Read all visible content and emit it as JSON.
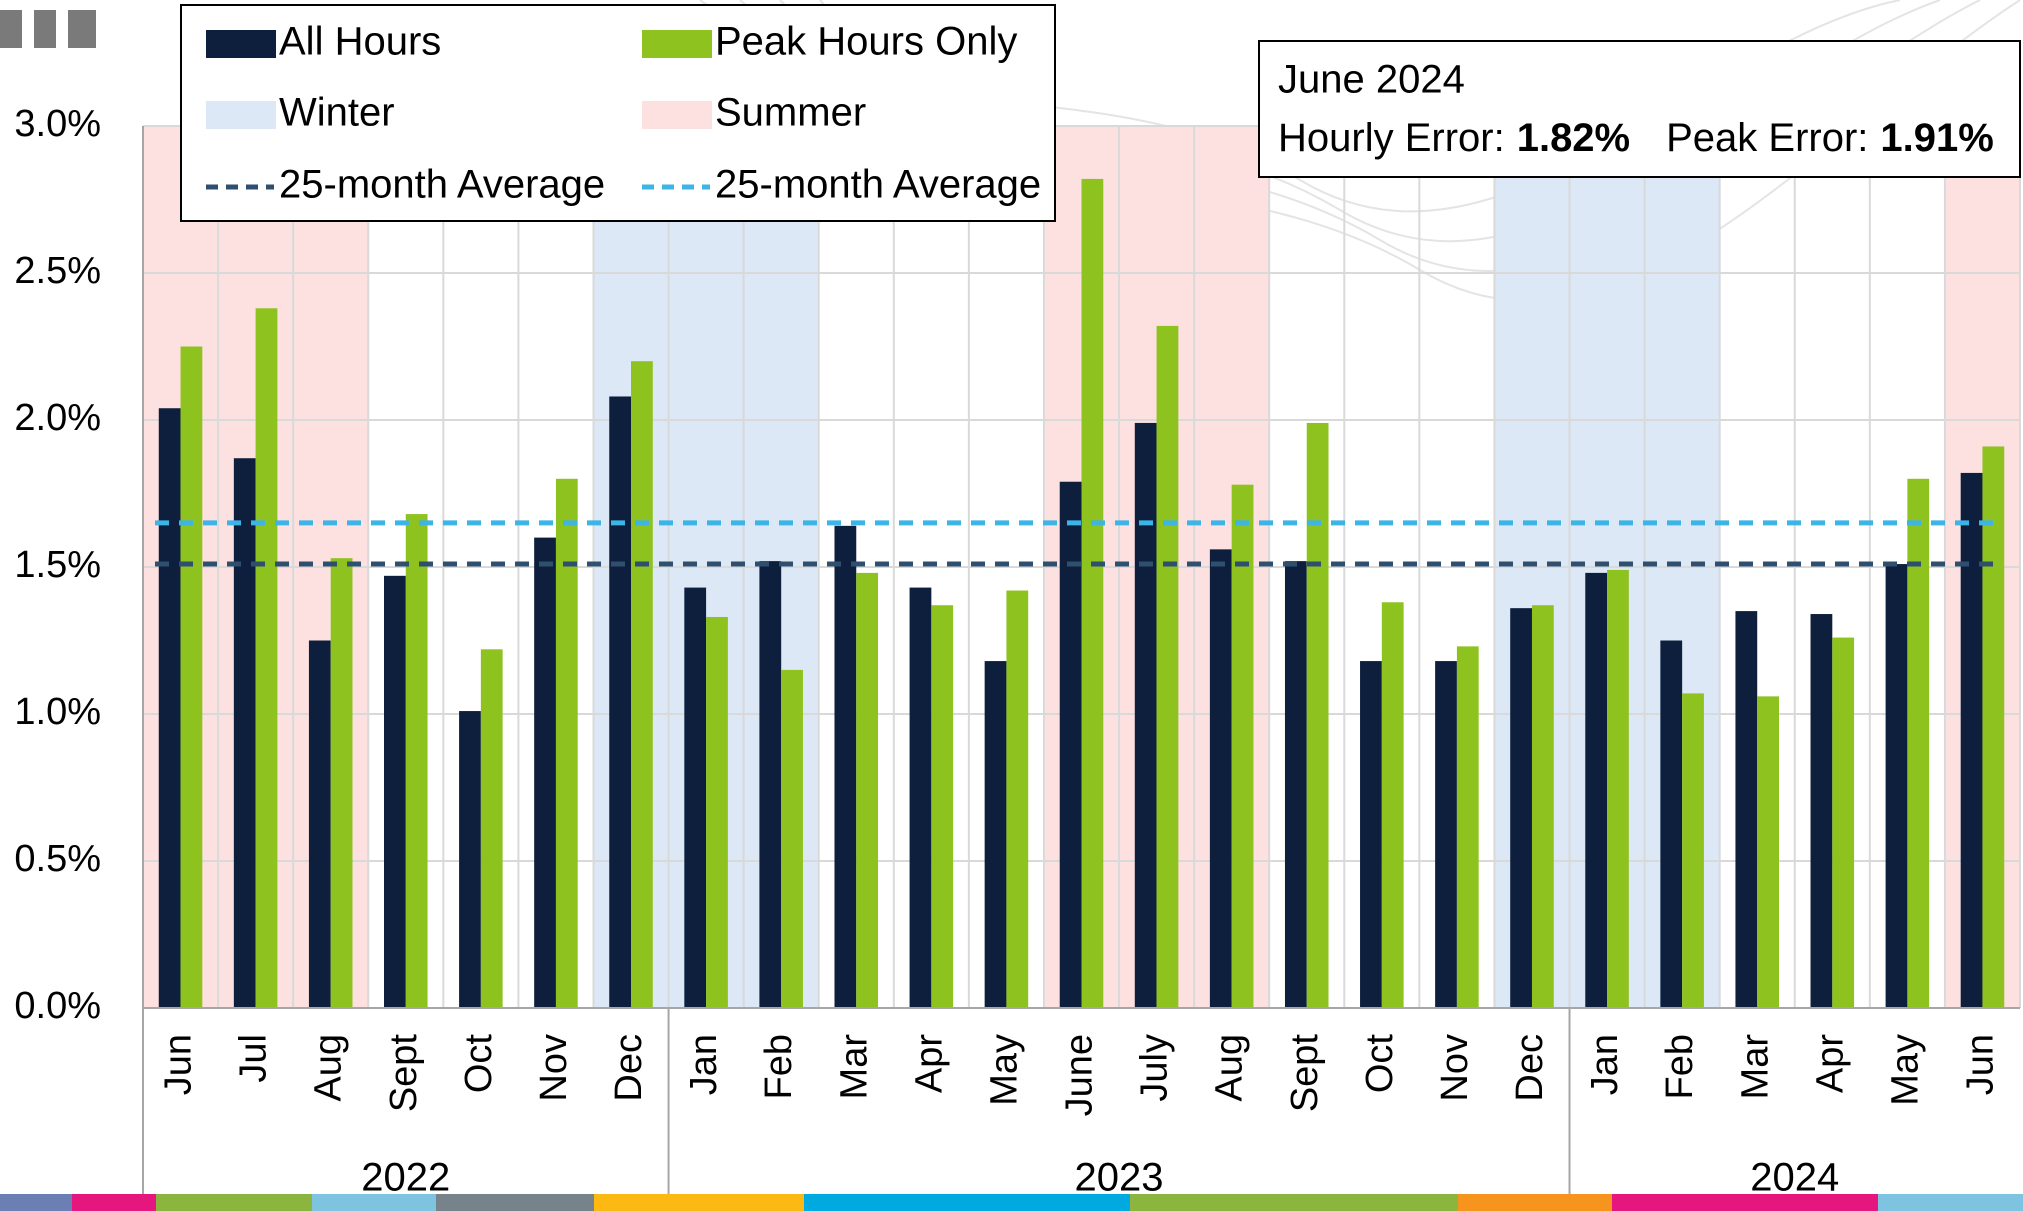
{
  "chart_data": {
    "type": "bar",
    "categories": [
      "Jun",
      "Jul",
      "Aug",
      "Sept",
      "Oct",
      "Nov",
      "Dec",
      "Jan",
      "Feb",
      "Mar",
      "Apr",
      "May",
      "June",
      "July",
      "Aug",
      "Sept",
      "Oct",
      "Nov",
      "Dec",
      "Jan",
      "Feb",
      "Mar",
      "Apr",
      "May",
      "Jun"
    ],
    "x_groups": [
      {
        "label": "2022",
        "count": 7
      },
      {
        "label": "2023",
        "count": 12
      },
      {
        "label": "2024",
        "count": 6
      }
    ],
    "series": [
      {
        "name": "All Hours",
        "color": "#0d1f3c",
        "values": [
          2.04,
          1.87,
          1.25,
          1.47,
          1.01,
          1.6,
          2.08,
          1.43,
          1.52,
          1.64,
          1.43,
          1.18,
          1.79,
          1.99,
          1.56,
          1.52,
          1.18,
          1.18,
          1.36,
          1.48,
          1.25,
          1.35,
          1.34,
          1.51,
          1.82
        ]
      },
      {
        "name": "Peak Hours Only",
        "color": "#8dc21f",
        "values": [
          2.25,
          2.38,
          1.53,
          1.68,
          1.22,
          1.8,
          2.2,
          1.33,
          1.15,
          1.48,
          1.37,
          1.42,
          2.82,
          2.32,
          1.78,
          1.99,
          1.38,
          1.23,
          1.37,
          1.49,
          1.07,
          1.06,
          1.26,
          1.8,
          1.91
        ]
      }
    ],
    "seasons": [
      {
        "name": "Winter",
        "color": "#dce8f5"
      },
      {
        "name": "Summer",
        "color": "#fde0e0"
      }
    ],
    "category_season": [
      1,
      1,
      1,
      null,
      null,
      null,
      0,
      0,
      0,
      null,
      null,
      null,
      1,
      1,
      1,
      null,
      null,
      null,
      0,
      0,
      0,
      null,
      null,
      null,
      1
    ],
    "reference_lines": [
      {
        "name": "25-month Average",
        "value": 1.51,
        "color": "#2f4f6f"
      },
      {
        "name": "25-month Average",
        "value": 1.65,
        "color": "#3cb4e5"
      }
    ],
    "annotation": {
      "title": "June 2024",
      "items": [
        {
          "label": "Hourly Error:",
          "value": "1.82%"
        },
        {
          "label": "Peak Error:",
          "value": "1.91%"
        }
      ]
    },
    "ylim": [
      0,
      3
    ],
    "yticks": [
      {
        "value": 0,
        "label": "0.0%"
      },
      {
        "value": 0.5,
        "label": "0.5%"
      },
      {
        "value": 1,
        "label": "1.0%"
      },
      {
        "value": 1.5,
        "label": "1.5%"
      },
      {
        "value": 2,
        "label": "2.0%"
      },
      {
        "value": 2.5,
        "label": "2.5%"
      },
      {
        "value": 3,
        "label": "3.0%"
      }
    ],
    "grid": true
  }
}
